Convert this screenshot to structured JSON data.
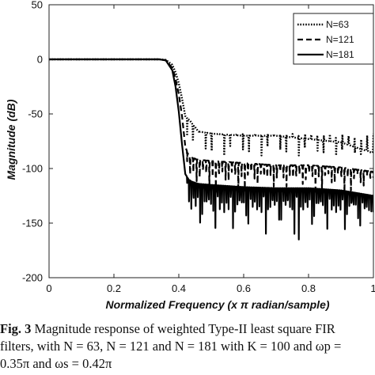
{
  "chart_data": {
    "type": "line",
    "xlabel": "Normalized Frequency (x π radian/sample)",
    "ylabel": "Magnitude (dB)",
    "xlim": [
      0,
      1
    ],
    "ylim": [
      -200,
      50
    ],
    "xticks": [
      "0",
      "0.2",
      "0.4",
      "0.6",
      "0.8",
      "1"
    ],
    "yticks": [
      "50",
      "0",
      "-50",
      "-100",
      "-150",
      "-200"
    ],
    "grid": false,
    "legend_position": "top-right",
    "passband_edge": 0.35,
    "stopband_edge": 0.42,
    "series": [
      {
        "name": "N=63",
        "style": "dotted",
        "color": "#000000",
        "x": [
          0,
          0.34,
          0.36,
          0.38,
          0.39,
          0.4,
          0.41,
          0.42,
          0.43,
          0.44,
          0.46,
          0.5,
          0.6,
          0.7,
          0.8,
          0.9,
          1.0
        ],
        "y": [
          0,
          0,
          -0.5,
          -5,
          -12,
          -22,
          -36,
          -52,
          -55,
          -58,
          -66,
          -68,
          -70,
          -70,
          -73,
          -76,
          -86
        ],
        "ripple_min_level": [
          -68,
          -78,
          -88
        ],
        "ripple_count": 30
      },
      {
        "name": "N=121",
        "style": "dashed",
        "color": "#000000",
        "x": [
          0,
          0.34,
          0.36,
          0.38,
          0.39,
          0.4,
          0.41,
          0.42,
          0.43,
          0.44,
          0.46,
          0.5,
          0.6,
          0.7,
          0.8,
          0.9,
          1.0
        ],
        "y": [
          0,
          0,
          -0.8,
          -8,
          -18,
          -32,
          -52,
          -80,
          -88,
          -90,
          -92,
          -93,
          -95,
          -97,
          -97,
          -99,
          -103
        ],
        "ripple_min_level": [
          -108,
          -125
        ],
        "ripple_count": 58
      },
      {
        "name": "N=181",
        "style": "solid",
        "color": "#000000",
        "x": [
          0,
          0.34,
          0.36,
          0.38,
          0.39,
          0.4,
          0.41,
          0.42,
          0.43,
          0.44,
          0.46,
          0.5,
          0.6,
          0.7,
          0.8,
          0.9,
          1.0
        ],
        "y": [
          0,
          0,
          -1,
          -10,
          -25,
          -48,
          -78,
          -105,
          -110,
          -112,
          -114,
          -115,
          -117,
          -118,
          -118,
          -120,
          -125
        ],
        "ripple_min_level": [
          -140,
          -165
        ],
        "ripple_count": 85
      }
    ]
  },
  "caption": {
    "line1_label": "Fig. 3",
    "line1": " Magnitude response of weighted Type-II least square FIR",
    "line2": "filters, with N = 63, N = 121 and N = 181 with K = 100 and ωp =",
    "line3": "0.35π and ωs = 0.42π"
  }
}
